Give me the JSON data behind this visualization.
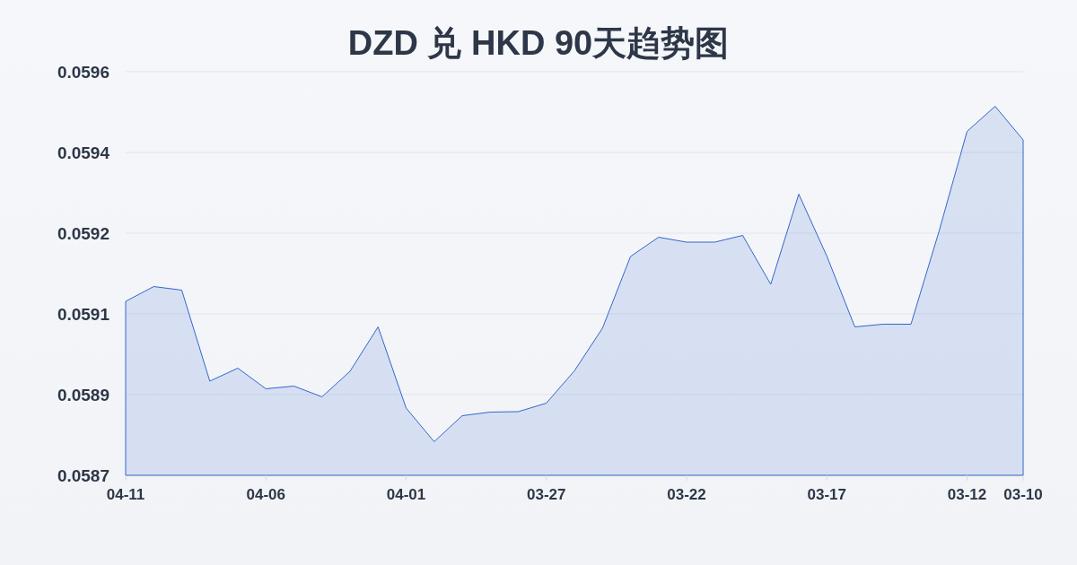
{
  "chart_data": {
    "type": "area",
    "title": "DZD 兑 HKD 90天趋势图",
    "x": [
      "--04-11",
      "--04-10",
      "--04-09",
      "--04-08",
      "--04-07",
      "--04-06",
      "--04-05",
      "--04-04",
      "--04-03",
      "--04-02",
      "--04-01",
      "--03-31",
      "--03-30",
      "--03-29",
      "--03-28",
      "--03-27",
      "--03-26",
      "--03-25",
      "--03-24",
      "--03-23",
      "--03-22",
      "--03-21",
      "--03-20",
      "--03-19",
      "--03-18",
      "--03-17",
      "--03-16",
      "--03-15",
      "--03-14",
      "--03-13",
      "--03-12",
      "--03-11",
      "--03-10"
    ],
    "values": [
      0.059088,
      0.059121,
      0.059113,
      0.05891,
      0.058939,
      0.058893,
      0.058899,
      0.058875,
      0.058932,
      0.059031,
      0.05885,
      0.058775,
      0.058833,
      0.058841,
      0.058842,
      0.058861,
      0.058933,
      0.059028,
      0.059188,
      0.059231,
      0.05922,
      0.05922,
      0.059235,
      0.059126,
      0.059327,
      0.059189,
      0.059031,
      0.059037,
      0.059037,
      0.059244,
      0.059467,
      0.059523,
      0.059448
    ],
    "color": "#3366cc",
    "xlim": [
      "--04-11",
      "--03-10"
    ],
    "xticks": [
      {
        "value": "--04-11",
        "label": "04-11"
      },
      {
        "value": "--04-06",
        "label": "04-06"
      },
      {
        "value": "--04-01",
        "label": "04-01"
      },
      {
        "value": "--03-27",
        "label": "03-27"
      },
      {
        "value": "--03-22",
        "label": "03-22"
      },
      {
        "value": "--03-17",
        "label": "03-17"
      },
      {
        "value": "--03-12",
        "label": "03-12"
      },
      {
        "value": "--03-10",
        "label": "03-10"
      }
    ],
    "ylim": [
      0.0587,
      0.0596
    ],
    "yticks": [
      0.0587,
      {
        "value": 0.05888,
        "label": "0.0589"
      },
      {
        "value": 0.05906,
        "label": "0.0591"
      },
      {
        "value": 0.05924,
        "label": "0.0592"
      },
      {
        "value": 0.05942,
        "label": "0.0594"
      },
      0.0596
    ],
    "grid": "y"
  }
}
